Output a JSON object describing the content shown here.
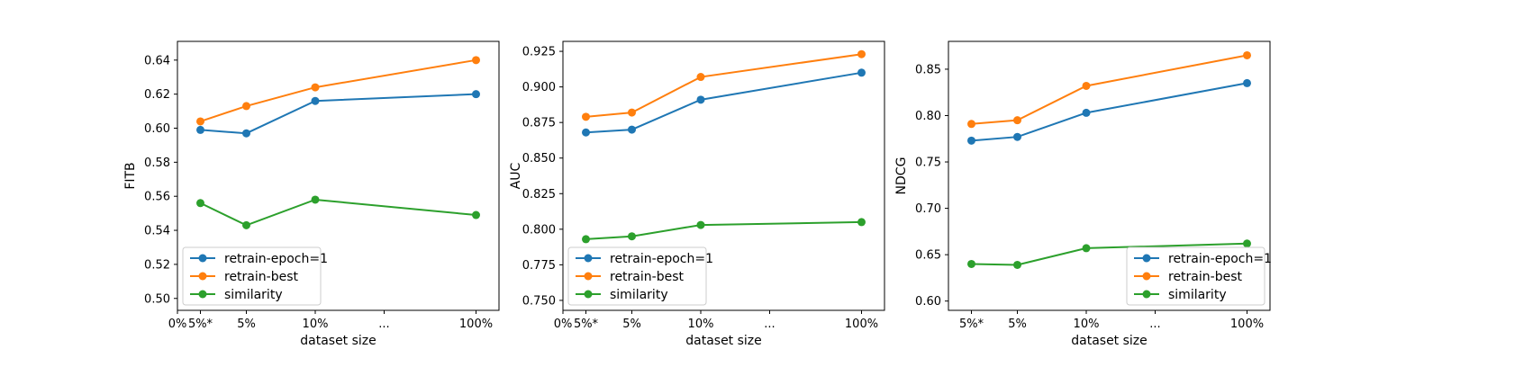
{
  "colors": {
    "retrain-epoch=1": "#1f77b4",
    "retrain-best": "#ff7f0e",
    "similarity": "#2ca02c"
  },
  "chart_data": [
    {
      "type": "line",
      "xlabel": "dataset size",
      "ylabel": "FITB",
      "x_ticks": [
        "0%",
        "5%*",
        "5%",
        "10%",
        "...",
        "100%"
      ],
      "x_tick_positions": [
        0,
        0.5,
        1.5,
        3,
        4.5,
        6.5
      ],
      "xlim": [
        0,
        7
      ],
      "ylim": [
        0.493,
        0.651
      ],
      "y_ticks": [
        0.5,
        0.52,
        0.54,
        0.56,
        0.58,
        0.6,
        0.62,
        0.64
      ],
      "y_tick_labels": [
        "0.50",
        "0.52",
        "0.54",
        "0.56",
        "0.58",
        "0.60",
        "0.62",
        "0.64"
      ],
      "x": [
        0.5,
        1.5,
        3,
        6.5
      ],
      "legend_loc": "lower-left",
      "series": [
        {
          "name": "retrain-epoch=1",
          "values": [
            0.599,
            0.597,
            0.616,
            0.62
          ]
        },
        {
          "name": "retrain-best",
          "values": [
            0.604,
            0.613,
            0.624,
            0.64
          ]
        },
        {
          "name": "similarity",
          "values": [
            0.556,
            0.543,
            0.558,
            0.549
          ]
        }
      ]
    },
    {
      "type": "line",
      "xlabel": "dataset size",
      "ylabel": "AUC",
      "x_ticks": [
        "0%",
        "5%*",
        "5%",
        "10%",
        "...",
        "100%"
      ],
      "x_tick_positions": [
        0,
        0.5,
        1.5,
        3,
        4.5,
        6.5
      ],
      "xlim": [
        0,
        7
      ],
      "ylim": [
        0.743,
        0.932
      ],
      "y_ticks": [
        0.75,
        0.775,
        0.8,
        0.825,
        0.85,
        0.875,
        0.9,
        0.925
      ],
      "y_tick_labels": [
        "0.750",
        "0.775",
        "0.800",
        "0.825",
        "0.850",
        "0.875",
        "0.900",
        "0.925"
      ],
      "x": [
        0.5,
        1.5,
        3,
        6.5
      ],
      "legend_loc": "lower-left",
      "series": [
        {
          "name": "retrain-epoch=1",
          "values": [
            0.868,
            0.87,
            0.891,
            0.91
          ]
        },
        {
          "name": "retrain-best",
          "values": [
            0.879,
            0.882,
            0.907,
            0.923
          ]
        },
        {
          "name": "similarity",
          "values": [
            0.793,
            0.795,
            0.803,
            0.805
          ]
        }
      ]
    },
    {
      "type": "line",
      "xlabel": "dataset size",
      "ylabel": "NDCG",
      "x_ticks": [
        "5%*",
        "5%",
        "10%",
        "...",
        "100%"
      ],
      "x_tick_positions": [
        0.5,
        1.5,
        3,
        4.5,
        6.5
      ],
      "xlim": [
        0,
        7
      ],
      "ylim": [
        0.59,
        0.88
      ],
      "y_ticks": [
        0.6,
        0.65,
        0.7,
        0.75,
        0.8,
        0.85
      ],
      "y_tick_labels": [
        "0.60",
        "0.65",
        "0.70",
        "0.75",
        "0.80",
        "0.85"
      ],
      "x": [
        0.5,
        1.5,
        3,
        6.5
      ],
      "legend_loc": "lower-right",
      "series": [
        {
          "name": "retrain-epoch=1",
          "values": [
            0.773,
            0.777,
            0.803,
            0.835
          ]
        },
        {
          "name": "retrain-best",
          "values": [
            0.791,
            0.795,
            0.832,
            0.865
          ]
        },
        {
          "name": "similarity",
          "values": [
            0.64,
            0.639,
            0.657,
            0.662
          ]
        }
      ]
    }
  ]
}
